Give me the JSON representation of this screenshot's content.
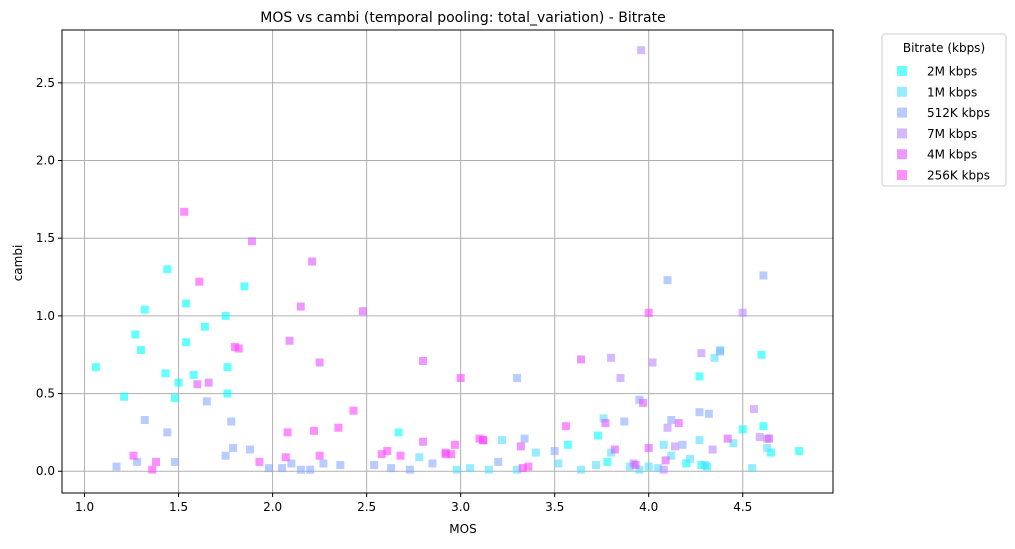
{
  "chart_data": {
    "type": "scatter",
    "title": "MOS vs cambi (temporal pooling: total_variation) - Bitrate",
    "xlabel": "MOS",
    "ylabel": "cambi",
    "xlim": [
      0.88,
      4.98
    ],
    "ylim": [
      -0.14,
      2.84
    ],
    "xticks": [
      "1.0",
      "1.5",
      "2.0",
      "2.5",
      "3.0",
      "3.5",
      "4.0",
      "4.5"
    ],
    "xtick_values": [
      1.0,
      1.5,
      2.0,
      2.5,
      3.0,
      3.5,
      4.0,
      4.5
    ],
    "yticks": [
      "0.0",
      "0.5",
      "1.0",
      "1.5",
      "2.0",
      "2.5"
    ],
    "ytick_values": [
      0.0,
      0.5,
      1.0,
      1.5,
      2.0,
      2.5
    ],
    "grid": true,
    "legend_title": "Bitrate (kbps)",
    "legend_position": "outside-top-right",
    "marker": "square",
    "series": [
      {
        "name": "2M kbps",
        "color": "#00ffff",
        "points": [
          [
            1.06,
            0.67
          ],
          [
            1.21,
            0.48
          ],
          [
            1.27,
            0.88
          ],
          [
            1.3,
            0.78
          ],
          [
            1.32,
            1.04
          ],
          [
            1.43,
            0.63
          ],
          [
            1.44,
            1.3
          ],
          [
            1.48,
            0.47
          ],
          [
            1.5,
            0.57
          ],
          [
            1.54,
            1.08
          ],
          [
            1.54,
            0.83
          ],
          [
            1.58,
            0.62
          ],
          [
            1.64,
            0.93
          ],
          [
            1.75,
            1.0
          ],
          [
            1.76,
            0.67
          ],
          [
            1.76,
            0.5
          ],
          [
            1.85,
            1.19
          ],
          [
            2.67,
            0.25
          ],
          [
            3.57,
            0.17
          ],
          [
            3.73,
            0.23
          ],
          [
            4.27,
            0.61
          ],
          [
            4.28,
            0.04
          ],
          [
            4.31,
            0.03
          ],
          [
            4.5,
            0.27
          ],
          [
            4.6,
            0.75
          ],
          [
            4.61,
            0.29
          ],
          [
            4.65,
            0.12
          ],
          [
            4.8,
            0.13
          ],
          [
            4.2,
            0.05
          ],
          [
            3.78,
            0.06
          ]
        ]
      },
      {
        "name": "1M kbps",
        "color": "#55ddff",
        "points": [
          [
            2.78,
            0.09
          ],
          [
            2.98,
            0.01
          ],
          [
            3.05,
            0.02
          ],
          [
            3.15,
            0.01
          ],
          [
            3.22,
            0.2
          ],
          [
            3.3,
            0.01
          ],
          [
            3.4,
            0.12
          ],
          [
            3.52,
            0.05
          ],
          [
            3.64,
            0.01
          ],
          [
            3.72,
            0.04
          ],
          [
            3.76,
            0.34
          ],
          [
            3.8,
            0.12
          ],
          [
            3.9,
            0.03
          ],
          [
            3.95,
            0.01
          ],
          [
            4.0,
            0.03
          ],
          [
            4.05,
            0.02
          ],
          [
            4.08,
            0.17
          ],
          [
            4.12,
            0.1
          ],
          [
            4.22,
            0.08
          ],
          [
            4.27,
            0.2
          ],
          [
            4.3,
            0.04
          ],
          [
            4.35,
            0.73
          ],
          [
            4.38,
            0.78
          ],
          [
            4.45,
            0.18
          ],
          [
            4.55,
            0.02
          ],
          [
            4.63,
            0.15
          ]
        ]
      },
      {
        "name": "512K kbps",
        "color": "#88aaff",
        "points": [
          [
            1.17,
            0.03
          ],
          [
            1.28,
            0.06
          ],
          [
            1.32,
            0.33
          ],
          [
            1.44,
            0.25
          ],
          [
            1.48,
            0.06
          ],
          [
            1.65,
            0.45
          ],
          [
            1.75,
            0.1
          ],
          [
            1.78,
            0.32
          ],
          [
            1.79,
            0.15
          ],
          [
            1.88,
            0.14
          ],
          [
            1.98,
            0.02
          ],
          [
            2.05,
            0.02
          ],
          [
            2.1,
            0.05
          ],
          [
            2.15,
            0.01
          ],
          [
            2.2,
            0.01
          ],
          [
            2.27,
            0.05
          ],
          [
            2.36,
            0.04
          ],
          [
            2.54,
            0.04
          ],
          [
            2.63,
            0.02
          ],
          [
            2.73,
            0.01
          ],
          [
            2.85,
            0.05
          ],
          [
            3.2,
            0.06
          ],
          [
            3.3,
            0.6
          ],
          [
            3.34,
            0.21
          ],
          [
            3.5,
            0.13
          ],
          [
            3.87,
            0.32
          ],
          [
            3.95,
            0.46
          ],
          [
            4.1,
            1.23
          ],
          [
            4.12,
            0.33
          ],
          [
            4.18,
            0.17
          ],
          [
            4.27,
            0.38
          ],
          [
            4.32,
            0.37
          ],
          [
            4.38,
            0.77
          ],
          [
            4.61,
            1.26
          ]
        ]
      },
      {
        "name": "7M kbps",
        "color": "#bb88ff",
        "points": [
          [
            3.8,
            0.73
          ],
          [
            3.85,
            0.6
          ],
          [
            3.96,
            2.71
          ],
          [
            4.02,
            0.7
          ],
          [
            4.1,
            0.28
          ],
          [
            4.14,
            0.16
          ],
          [
            4.28,
            0.76
          ],
          [
            4.34,
            0.14
          ],
          [
            4.5,
            1.02
          ],
          [
            4.56,
            0.4
          ],
          [
            4.59,
            0.22
          ],
          [
            4.63,
            0.21
          ],
          [
            3.92,
            0.05
          ],
          [
            4.08,
            0.01
          ]
        ]
      },
      {
        "name": "4M kbps",
        "color": "#dd55ff",
        "points": [
          [
            1.6,
            0.56
          ],
          [
            1.66,
            0.57
          ],
          [
            1.89,
            1.48
          ],
          [
            2.09,
            0.84
          ],
          [
            2.15,
            1.06
          ],
          [
            2.21,
            1.35
          ],
          [
            2.25,
            0.7
          ],
          [
            2.48,
            1.03
          ],
          [
            2.8,
            0.71
          ],
          [
            2.8,
            0.19
          ],
          [
            2.92,
            0.12
          ],
          [
            3.12,
            0.2
          ],
          [
            3.32,
            0.16
          ],
          [
            3.64,
            0.72
          ],
          [
            3.77,
            0.31
          ],
          [
            3.82,
            0.14
          ],
          [
            3.97,
            0.44
          ],
          [
            3.93,
            0.04
          ],
          [
            4.0,
            0.15
          ],
          [
            4.09,
            0.07
          ],
          [
            4.16,
            0.31
          ],
          [
            4.42,
            0.21
          ],
          [
            4.64,
            0.21
          ]
        ]
      },
      {
        "name": "256K kbps",
        "color": "#ff44ff",
        "points": [
          [
            1.26,
            0.1
          ],
          [
            1.36,
            0.01
          ],
          [
            1.38,
            0.06
          ],
          [
            1.53,
            1.67
          ],
          [
            1.61,
            1.22
          ],
          [
            1.8,
            0.8
          ],
          [
            1.82,
            0.79
          ],
          [
            1.93,
            0.06
          ],
          [
            2.07,
            0.09
          ],
          [
            2.08,
            0.25
          ],
          [
            2.22,
            0.26
          ],
          [
            2.25,
            0.1
          ],
          [
            2.35,
            0.28
          ],
          [
            2.43,
            0.39
          ],
          [
            2.58,
            0.11
          ],
          [
            2.61,
            0.13
          ],
          [
            2.68,
            0.1
          ],
          [
            2.92,
            0.11
          ],
          [
            2.95,
            0.11
          ],
          [
            2.97,
            0.17
          ],
          [
            3.0,
            0.6
          ],
          [
            3.1,
            0.21
          ],
          [
            3.12,
            0.2
          ],
          [
            3.33,
            0.02
          ],
          [
            3.36,
            0.03
          ],
          [
            3.56,
            0.29
          ],
          [
            4.0,
            1.02
          ]
        ]
      }
    ]
  }
}
